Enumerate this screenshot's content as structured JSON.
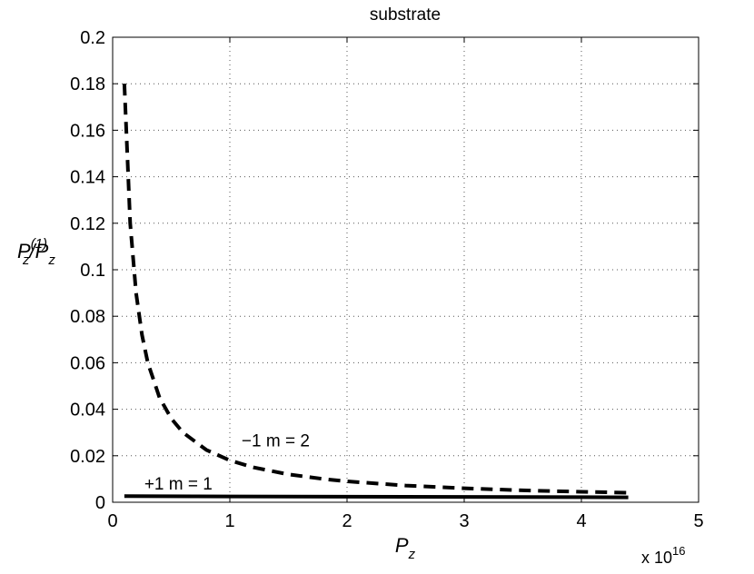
{
  "chart_data": {
    "type": "line",
    "title": "substrate",
    "xlabel": {
      "main": "P",
      "sub": "z"
    },
    "ylabel": {
      "num_main": "P",
      "num_sup": "(1)",
      "num_sub": "z",
      "slash": "/",
      "den_main": "P",
      "den_sub": "z"
    },
    "x_exponent": {
      "base": "x 10",
      "power": "16"
    },
    "xlim": [
      0,
      5
    ],
    "ylim": [
      0,
      0.2
    ],
    "xticks": [
      0,
      1,
      2,
      3,
      4,
      5
    ],
    "xtick_labels": [
      "0",
      "1",
      "2",
      "3",
      "4",
      "5"
    ],
    "yticks": [
      0,
      0.02,
      0.04,
      0.06,
      0.08,
      0.1,
      0.12,
      0.14,
      0.16,
      0.18,
      0.2
    ],
    "ytick_labels": [
      "0",
      "0.02",
      "0.04",
      "0.06",
      "0.08",
      "0.1",
      "0.12",
      "0.14",
      "0.16",
      "0.18",
      "0.2"
    ],
    "grid": true,
    "series": [
      {
        "style": "dashed",
        "x": [
          0.1,
          0.15,
          0.2,
          0.25,
          0.3,
          0.4,
          0.5,
          0.6,
          0.8,
          1.0,
          1.2,
          1.5,
          1.8,
          2.0,
          2.5,
          3.0,
          3.5,
          4.0,
          4.4
        ],
        "y": [
          0.18,
          0.12,
          0.09,
          0.072,
          0.06,
          0.045,
          0.036,
          0.03,
          0.0225,
          0.018,
          0.015,
          0.012,
          0.01,
          0.009,
          0.0072,
          0.006,
          0.0051,
          0.0045,
          0.0041
        ]
      },
      {
        "style": "solid",
        "x": [
          0.1,
          1.0,
          2.0,
          3.0,
          4.0,
          4.4
        ],
        "y": [
          0.0026,
          0.0025,
          0.0024,
          0.0023,
          0.0022,
          0.0021
        ]
      }
    ],
    "annotations": [
      {
        "text": "−1  m = 2",
        "x": 1.1,
        "y": 0.024
      },
      {
        "text": "+1  m = 1",
        "x": 0.27,
        "y": 0.0055
      }
    ]
  }
}
